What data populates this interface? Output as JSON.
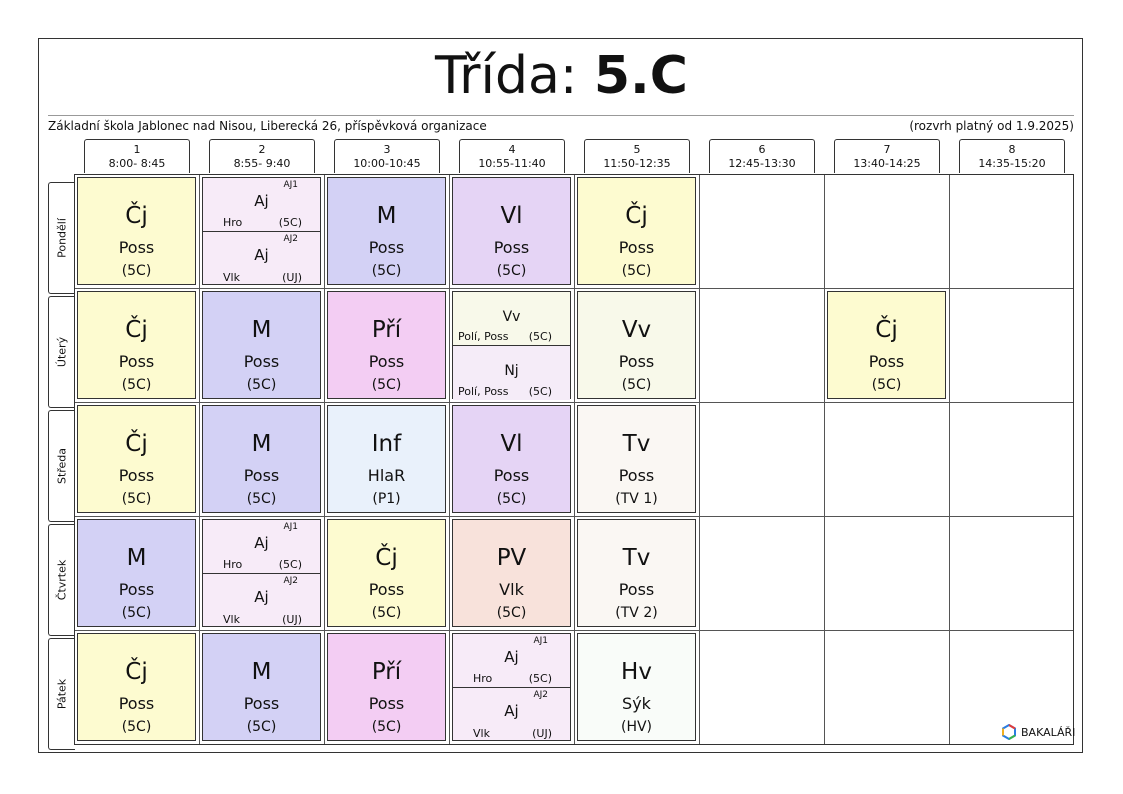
{
  "title": {
    "prefix": "Třída:",
    "class_name": "5.C"
  },
  "school": "Základní škola Jablonec nad Nisou, Liberecká 26, příspěvková organizace",
  "valid_from": "(rozvrh platný od 1.9.2025)",
  "hours": [
    {
      "num": "1",
      "time": "8:00- 8:45"
    },
    {
      "num": "2",
      "time": "8:55- 9:40"
    },
    {
      "num": "3",
      "time": "10:00-10:45"
    },
    {
      "num": "4",
      "time": "10:55-11:40"
    },
    {
      "num": "5",
      "time": "11:50-12:35"
    },
    {
      "num": "6",
      "time": "12:45-13:30"
    },
    {
      "num": "7",
      "time": "13:40-14:25"
    },
    {
      "num": "8",
      "time": "14:35-15:20"
    }
  ],
  "days": [
    "Pondělí",
    "Úterý",
    "Středa",
    "Čtvrtek",
    "Pátek"
  ],
  "lessons": {
    "mon": {
      "h1": {
        "subject": "Čj",
        "teacher": "Poss",
        "room": "(5C)",
        "color": "#fdfbd0"
      },
      "h2": {
        "color": "#f7ebf8",
        "top": {
          "group": "AJ1",
          "subject": "Aj",
          "teacher": "Hro",
          "room": "(5C)"
        },
        "bottom": {
          "group": "AJ2",
          "subject": "Aj",
          "teacher": "Vlk",
          "room": "(UJ)"
        }
      },
      "h3": {
        "subject": "M",
        "teacher": "Poss",
        "room": "(5C)",
        "color": "#d3d1f5"
      },
      "h4": {
        "subject": "Vl",
        "teacher": "Poss",
        "room": "(5C)",
        "color": "#e5d4f5"
      },
      "h5": {
        "subject": "Čj",
        "teacher": "Poss",
        "room": "(5C)",
        "color": "#fdfbd0"
      }
    },
    "tue": {
      "h1": {
        "subject": "Čj",
        "teacher": "Poss",
        "room": "(5C)",
        "color": "#fdfbd0"
      },
      "h2": {
        "subject": "M",
        "teacher": "Poss",
        "room": "(5C)",
        "color": "#d3d1f5"
      },
      "h3": {
        "subject": "Pří",
        "teacher": "Poss",
        "room": "(5C)",
        "color": "#f3cdf3"
      },
      "h4": {
        "color_top": "#f8f9ea",
        "color_bottom": "#f5ecf8",
        "top": {
          "subject": "Vv",
          "teacher": "Polí, Poss",
          "room": "(5C)"
        },
        "bottom": {
          "subject": "Nj",
          "teacher": "Polí, Poss",
          "room": "(5C)"
        }
      },
      "h5": {
        "subject": "Vv",
        "teacher": "Poss",
        "room": "(5C)",
        "color": "#f8f9ea"
      },
      "h7": {
        "subject": "Čj",
        "teacher": "Poss",
        "room": "(5C)",
        "color": "#fdfbd0"
      }
    },
    "wed": {
      "h1": {
        "subject": "Čj",
        "teacher": "Poss",
        "room": "(5C)",
        "color": "#fdfbd0"
      },
      "h2": {
        "subject": "M",
        "teacher": "Poss",
        "room": "(5C)",
        "color": "#d3d1f5"
      },
      "h3": {
        "subject": "Inf",
        "teacher": "HlaR",
        "room": "(P1)",
        "color": "#e9f1fb"
      },
      "h4": {
        "subject": "Vl",
        "teacher": "Poss",
        "room": "(5C)",
        "color": "#e5d4f5"
      },
      "h5": {
        "subject": "Tv",
        "teacher": "Poss",
        "room": "(TV 1)",
        "color": "#faf7f3"
      }
    },
    "thu": {
      "h1": {
        "subject": "M",
        "teacher": "Poss",
        "room": "(5C)",
        "color": "#d3d1f5"
      },
      "h2": {
        "color": "#f7ebf8",
        "top": {
          "group": "AJ1",
          "subject": "Aj",
          "teacher": "Hro",
          "room": "(5C)"
        },
        "bottom": {
          "group": "AJ2",
          "subject": "Aj",
          "teacher": "Vlk",
          "room": "(UJ)"
        }
      },
      "h3": {
        "subject": "Čj",
        "teacher": "Poss",
        "room": "(5C)",
        "color": "#fdfbd0"
      },
      "h4": {
        "subject": "PV",
        "teacher": "Vlk",
        "room": "(5C)",
        "color": "#f8e2db"
      },
      "h5": {
        "subject": "Tv",
        "teacher": "Poss",
        "room": "(TV 2)",
        "color": "#faf7f3"
      }
    },
    "fri": {
      "h1": {
        "subject": "Čj",
        "teacher": "Poss",
        "room": "(5C)",
        "color": "#fdfbd0"
      },
      "h2": {
        "subject": "M",
        "teacher": "Poss",
        "room": "(5C)",
        "color": "#d3d1f5"
      },
      "h3": {
        "subject": "Pří",
        "teacher": "Poss",
        "room": "(5C)",
        "color": "#f3cdf3"
      },
      "h4": {
        "color": "#f7ebf8",
        "top": {
          "group": "AJ1",
          "subject": "Aj",
          "teacher": "Hro",
          "room": "(5C)"
        },
        "bottom": {
          "group": "AJ2",
          "subject": "Aj",
          "teacher": "Vlk",
          "room": "(UJ)"
        }
      },
      "h5": {
        "subject": "Hv",
        "teacher": "Sýk",
        "room": "(HV)",
        "color": "#f9fcf9"
      }
    }
  },
  "logo": {
    "icon": "bakalari-logo-icon",
    "text": "BAKALÁŘI"
  }
}
